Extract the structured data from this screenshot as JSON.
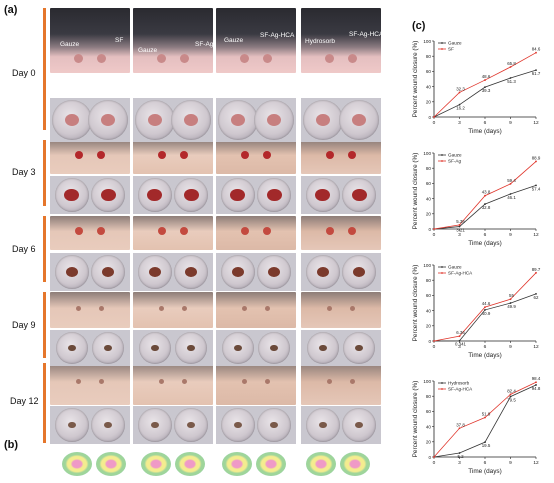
{
  "panels": {
    "a": "(a)",
    "b": "(b)",
    "c": "(c)"
  },
  "days": [
    "Day 0",
    "Day 3",
    "Day 6",
    "Day 9",
    "Day 12"
  ],
  "annotations": {
    "g1_left": "Gauze",
    "g1_right": "SF",
    "g2_left": "Gauze",
    "g2_right": "SF-Ag",
    "g3_left": "Gauze",
    "g3_right": "SF-Ag-HCA",
    "g4_left": "Hydrosorb",
    "g4_right": "SF-Ag-HCA"
  },
  "chart_data": [
    {
      "type": "line",
      "ylabel": "Percent wound closure (%)",
      "xlabel": "Time (days)",
      "x": [
        0,
        3,
        6,
        9,
        12
      ],
      "ylim": [
        0,
        100
      ],
      "xticks": [
        "0",
        "3",
        "6",
        "9",
        "12"
      ],
      "yticks": [
        "0",
        "20",
        "40",
        "60",
        "80",
        "100"
      ],
      "series": [
        {
          "name": "Gauze",
          "color": "#333333",
          "values": [
            0,
            16.2,
            39.3,
            51.3,
            61.7
          ],
          "labels": [
            "",
            "16.2",
            "39.3",
            "51.3",
            "61.7"
          ]
        },
        {
          "name": "SF",
          "color": "#e0352b",
          "values": [
            0,
            32.3,
            48.6,
            65.8,
            84.6
          ],
          "labels": [
            "",
            "32.3",
            "48.6",
            "65.8",
            "84.6"
          ]
        }
      ]
    },
    {
      "type": "line",
      "ylabel": "Percent wound closure (%)",
      "xlabel": "Time (days)",
      "x": [
        0,
        3,
        6,
        9,
        12
      ],
      "ylim": [
        0,
        100
      ],
      "xticks": [
        "0",
        "3",
        "6",
        "9",
        "12"
      ],
      "yticks": [
        "0",
        "20",
        "40",
        "60",
        "80",
        "100"
      ],
      "series": [
        {
          "name": "Gauze",
          "color": "#333333",
          "values": [
            0,
            3.21,
            32.8,
            46.1,
            57.4
          ],
          "labels": [
            "",
            "3.21",
            "32.8",
            "46.1",
            "57.4"
          ]
        },
        {
          "name": "SF-Ag",
          "color": "#e0352b",
          "values": [
            0,
            5.35,
            43.8,
            59.4,
            88.9
          ],
          "labels": [
            "",
            "5.35",
            "43.8",
            "59.4",
            "88.9"
          ]
        }
      ]
    },
    {
      "type": "line",
      "ylabel": "Percent wound closure (%)",
      "xlabel": "Time (days)",
      "x": [
        0,
        3,
        6,
        9,
        12
      ],
      "ylim": [
        0,
        100
      ],
      "xticks": [
        "0",
        "3",
        "6",
        "9",
        "12"
      ],
      "yticks": [
        "0",
        "20",
        "40",
        "60",
        "80",
        "100"
      ],
      "series": [
        {
          "name": "Gauze",
          "color": "#333333",
          "values": [
            0,
            0.341,
            40.9,
            49.9,
            62
          ],
          "labels": [
            "",
            "0.341",
            "40.9",
            "49.9",
            "62"
          ]
        },
        {
          "name": "SF-Ag-HCA",
          "color": "#e0352b",
          "values": [
            0,
            6.36,
            44.6,
            55,
            89.7
          ],
          "labels": [
            "",
            "6.36",
            "44.6",
            "55",
            "89.7"
          ]
        }
      ]
    },
    {
      "type": "line",
      "ylabel": "Percent wound closure (%)",
      "xlabel": "Time (days)",
      "x": [
        0,
        3,
        6,
        9,
        12
      ],
      "ylim": [
        0,
        100
      ],
      "xticks": [
        "0",
        "3",
        "6",
        "9",
        "12"
      ],
      "yticks": [
        "0",
        "20",
        "40",
        "60",
        "80",
        "100"
      ],
      "series": [
        {
          "name": "Hydrosorb",
          "color": "#333333",
          "values": [
            0,
            5.2,
            19.5,
            79.5,
            94.8
          ],
          "labels": [
            "",
            "5.2",
            "19.5",
            "79.5",
            "94.8"
          ]
        },
        {
          "name": "SF-Ag-HCA",
          "color": "#e0352b",
          "values": [
            0,
            37.8,
            51.9,
            82.4,
            98.4
          ],
          "labels": [
            "",
            "37.8",
            "51.9",
            "82.4",
            "98.4"
          ]
        }
      ]
    }
  ]
}
